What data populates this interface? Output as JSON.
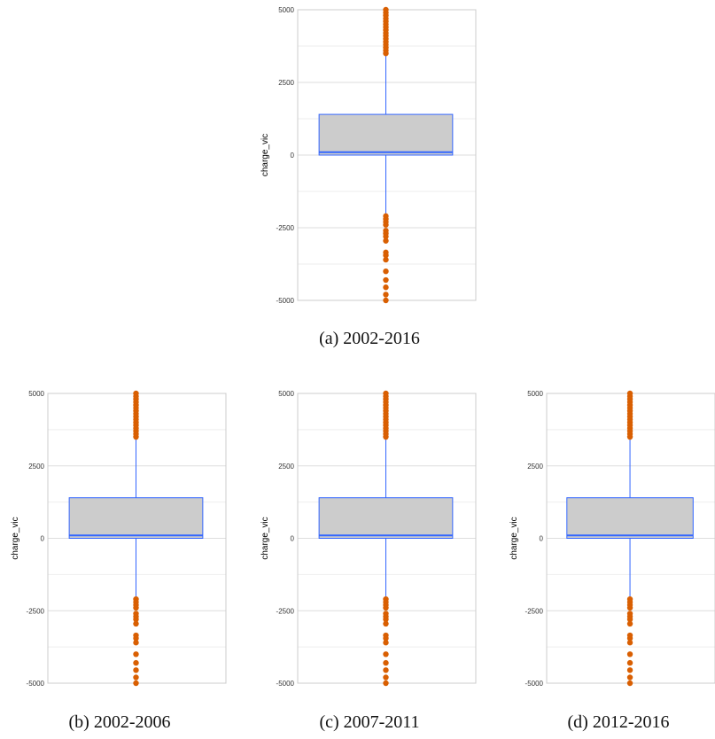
{
  "colors": {
    "box_fill": "#cccccc",
    "box_stroke": "#3366ff",
    "whisker": "#3366ff",
    "outlier": "#d95f02",
    "grid_major": "#dddddd",
    "grid_minor": "#eeeeee",
    "panel_border": "#cccccc"
  },
  "chart_data": [
    {
      "type": "box",
      "caption": "(a) 2002-2016",
      "ylabel": "charge_vic",
      "ylim": [
        -5000,
        5000
      ],
      "yticks": [
        5000,
        2500,
        0,
        -2500,
        -5000
      ],
      "grid": true,
      "box": {
        "q1": 0,
        "median": 100,
        "q3": 1400,
        "whisker_low": -2050,
        "whisker_high": 3450
      },
      "outliers": [
        3500,
        3600,
        3700,
        3800,
        3900,
        4000,
        4100,
        4200,
        4300,
        4400,
        4500,
        4600,
        4700,
        4800,
        4900,
        5000,
        -2100,
        -2200,
        -2300,
        -2400,
        -2600,
        -2700,
        -2800,
        -2950,
        -3350,
        -3450,
        -3600,
        -4000,
        -4300,
        -4550,
        -4800,
        -5000
      ]
    },
    {
      "type": "box",
      "caption": "(b) 2002-2006",
      "ylabel": "charge_vic",
      "ylim": [
        -5000,
        5000
      ],
      "yticks": [
        5000,
        2500,
        0,
        -2500,
        -5000
      ],
      "grid": true,
      "box": {
        "q1": 0,
        "median": 100,
        "q3": 1400,
        "whisker_low": -2050,
        "whisker_high": 3450
      },
      "outliers": [
        3500,
        3600,
        3700,
        3800,
        3900,
        4000,
        4100,
        4200,
        4300,
        4400,
        4500,
        4600,
        4700,
        4800,
        4900,
        5000,
        -2100,
        -2200,
        -2300,
        -2400,
        -2600,
        -2700,
        -2800,
        -2950,
        -3350,
        -3450,
        -3600,
        -4000,
        -4300,
        -4550,
        -4800,
        -5000
      ]
    },
    {
      "type": "box",
      "caption": "(c) 2007-2011",
      "ylabel": "charge_vic",
      "ylim": [
        -5000,
        5000
      ],
      "yticks": [
        5000,
        2500,
        0,
        -2500,
        -5000
      ],
      "grid": true,
      "box": {
        "q1": 0,
        "median": 100,
        "q3": 1400,
        "whisker_low": -2050,
        "whisker_high": 3450
      },
      "outliers": [
        3500,
        3600,
        3700,
        3800,
        3900,
        4000,
        4100,
        4200,
        4300,
        4400,
        4500,
        4600,
        4700,
        4800,
        4900,
        5000,
        -2100,
        -2200,
        -2300,
        -2400,
        -2600,
        -2700,
        -2800,
        -2950,
        -3350,
        -3450,
        -3600,
        -4000,
        -4300,
        -4550,
        -4800,
        -5000
      ]
    },
    {
      "type": "box",
      "caption": "(d) 2012-2016",
      "ylabel": "charge_vic",
      "ylim": [
        -5000,
        5000
      ],
      "yticks": [
        5000,
        2500,
        0,
        -2500,
        -5000
      ],
      "grid": true,
      "box": {
        "q1": 0,
        "median": 100,
        "q3": 1400,
        "whisker_low": -2050,
        "whisker_high": 3450
      },
      "outliers": [
        3500,
        3600,
        3700,
        3800,
        3900,
        4000,
        4100,
        4200,
        4300,
        4400,
        4500,
        4600,
        4700,
        4800,
        4900,
        5000,
        -2100,
        -2200,
        -2300,
        -2400,
        -2600,
        -2700,
        -2800,
        -2950,
        -3350,
        -3450,
        -3600,
        -4000,
        -4300,
        -4550,
        -4800,
        -5000
      ]
    }
  ]
}
